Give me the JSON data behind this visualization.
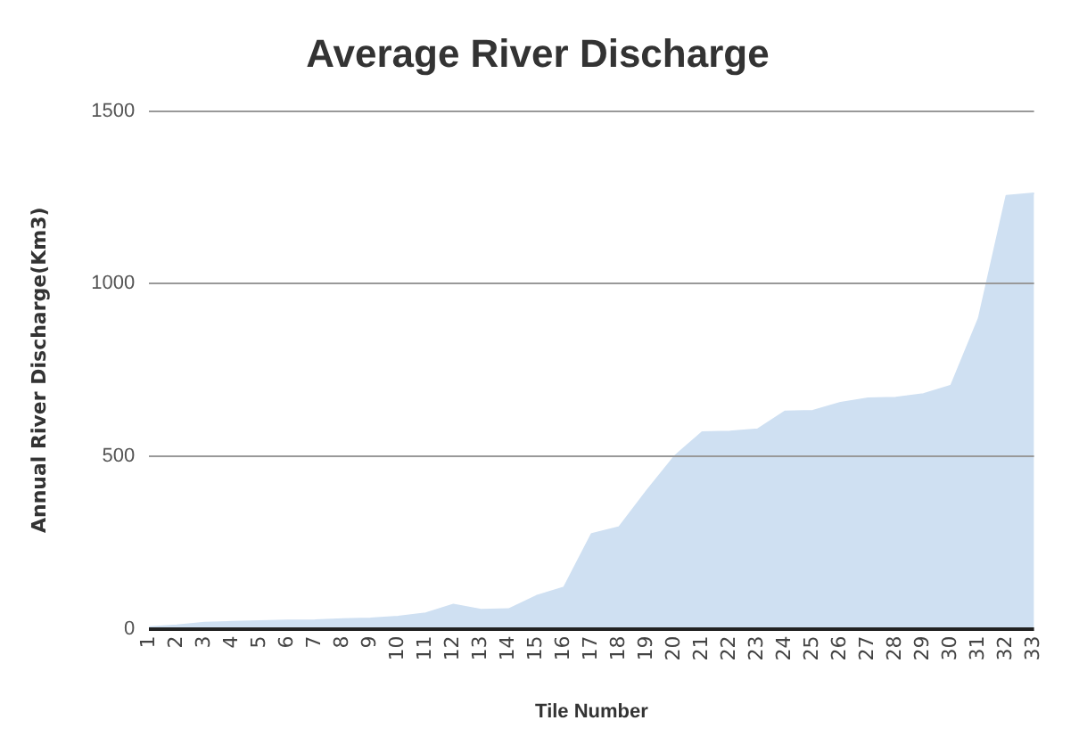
{
  "chart_data": {
    "type": "area",
    "title": "Average River Discharge",
    "xlabel": "Tile Number",
    "ylabel": "Annual River Discharge(Km3)",
    "categories": [
      "1",
      "2",
      "3",
      "4",
      "5",
      "6",
      "7",
      "8",
      "9",
      "10",
      "11",
      "12",
      "13",
      "14",
      "15",
      "16",
      "17",
      "18",
      "19",
      "20",
      "21",
      "22",
      "23",
      "24",
      "25",
      "26",
      "27",
      "28",
      "29",
      "30",
      "31",
      "32",
      "33"
    ],
    "series": [
      {
        "color": "#cfe0f2",
        "values": [
          5,
          10,
          18,
          20,
          22,
          24,
          25,
          28,
          30,
          35,
          45,
          70,
          55,
          57,
          95,
          120,
          275,
          295,
          400,
          500,
          570,
          572,
          578,
          630,
          632,
          655,
          668,
          670,
          680,
          705,
          900,
          1255,
          1262
        ]
      }
    ],
    "ylim": [
      0,
      1500
    ],
    "yticks": [
      0,
      500,
      1000,
      1500
    ],
    "grid": "y",
    "legend": false,
    "marker": "none"
  }
}
